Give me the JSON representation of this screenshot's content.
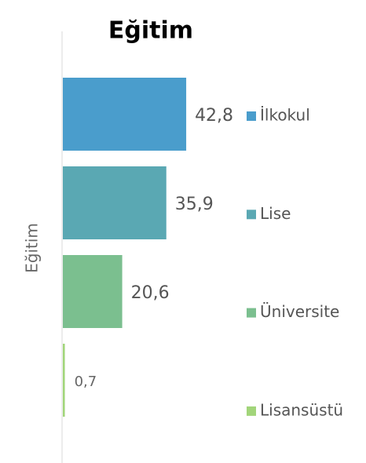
{
  "chart_data": {
    "type": "bar",
    "orientation": "horizontal",
    "title": "Eğitim",
    "y_label": "Eğitim",
    "categories": [
      "İlkokul",
      "Lise",
      "Üniversite",
      "Lisansüstü"
    ],
    "values": [
      42.8,
      35.9,
      20.6,
      0.7
    ],
    "value_labels": [
      "42,8",
      "35,9",
      "20,6",
      "0,7"
    ],
    "colors": [
      "#4a9dcc",
      "#5aa8b3",
      "#7bbf8f",
      "#a2d57a"
    ],
    "legend": "right"
  }
}
